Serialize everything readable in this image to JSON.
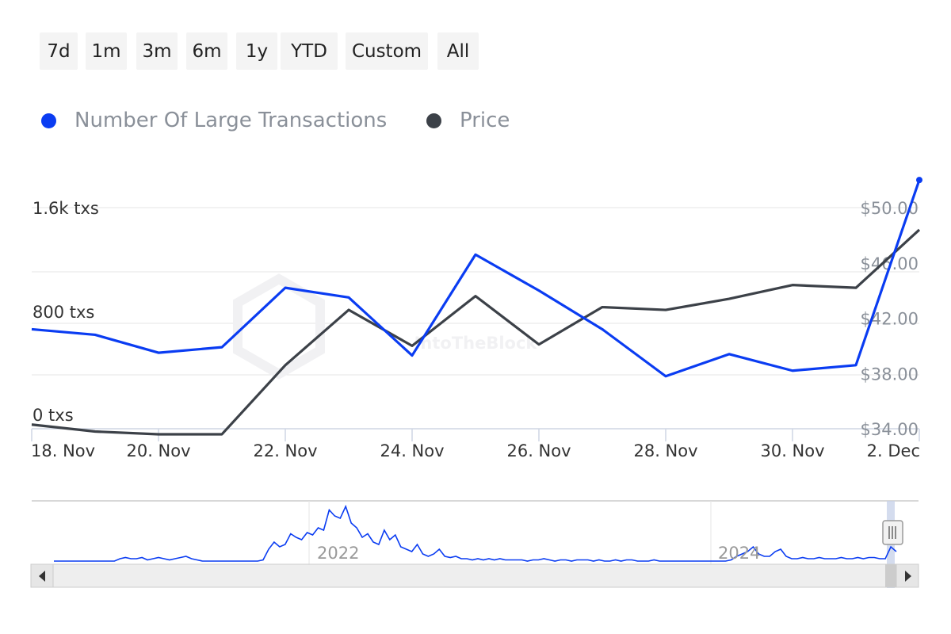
{
  "range_buttons": [
    "7d",
    "1m",
    "3m",
    "6m",
    "1y",
    "YTD",
    "Custom",
    "All"
  ],
  "colors": {
    "transactions": "#0a3cf2",
    "price": "#3c4148",
    "grid": "#e6e6e6",
    "axis_text": "#333333",
    "right_axis_text": "#8a9099",
    "navigator_handle": "#c9d3ea"
  },
  "chart_data": {
    "type": "line",
    "title": "",
    "x": [
      "18 Nov",
      "19 Nov",
      "20 Nov",
      "21 Nov",
      "22 Nov",
      "23 Nov",
      "24 Nov",
      "25 Nov",
      "26 Nov",
      "27 Nov",
      "28 Nov",
      "29 Nov",
      "30 Nov",
      "1 Dec",
      "2 Dec"
    ],
    "series": [
      {
        "name": "Number Of Large Transactions",
        "axis": "left",
        "unit": "txs",
        "values": [
          720,
          680,
          550,
          590,
          1020,
          950,
          530,
          1260,
          1000,
          720,
          380,
          540,
          420,
          460,
          1800
        ]
      },
      {
        "name": "Price",
        "axis": "right",
        "unit": "USD",
        "values": [
          34.3,
          33.8,
          33.6,
          33.6,
          38.6,
          42.6,
          40.0,
          43.6,
          40.1,
          42.8,
          42.6,
          43.4,
          44.4,
          44.2,
          48.4
        ]
      }
    ],
    "x_ticks": [
      "18. Nov",
      "20. Nov",
      "22. Nov",
      "24. Nov",
      "26. Nov",
      "28. Nov",
      "30. Nov",
      "2. Dec"
    ],
    "y_left": {
      "ticks": [
        "0 txs",
        "800 txs",
        "1.6k txs"
      ],
      "ylim": [
        0,
        1600
      ]
    },
    "y_right": {
      "ticks": [
        "$34.00",
        "$38.00",
        "$42.00",
        "$46.00",
        "$50.00"
      ],
      "ylim": [
        34,
        50
      ]
    },
    "legend": "top-left",
    "watermark": "IntoTheBlock",
    "navigator": {
      "year_labels": [
        "2022",
        "2024"
      ],
      "series_values": [
        2,
        2,
        2,
        2,
        2,
        2,
        2,
        2,
        2,
        2,
        2,
        2,
        4,
        5,
        4,
        4,
        5,
        3,
        4,
        5,
        4,
        3,
        4,
        5,
        6,
        4,
        3,
        2,
        2,
        2,
        2,
        2,
        2,
        2,
        2,
        2,
        2,
        2,
        3,
        12,
        18,
        14,
        16,
        25,
        22,
        20,
        26,
        24,
        30,
        28,
        45,
        40,
        38,
        48,
        34,
        30,
        22,
        25,
        18,
        16,
        28,
        20,
        24,
        14,
        12,
        10,
        16,
        8,
        6,
        8,
        12,
        6,
        5,
        6,
        4,
        4,
        3,
        4,
        3,
        4,
        3,
        4,
        3,
        3,
        3,
        3,
        2,
        3,
        3,
        4,
        3,
        2,
        3,
        3,
        2,
        3,
        3,
        3,
        2,
        3,
        2,
        2,
        3,
        2,
        3,
        3,
        2,
        2,
        2,
        3,
        2,
        2,
        2,
        2,
        2,
        2,
        2,
        2,
        2,
        2,
        2,
        2,
        2,
        3,
        6,
        8,
        10,
        14,
        8,
        6,
        6,
        10,
        12,
        6,
        4,
        4,
        5,
        4,
        4,
        5,
        4,
        4,
        4,
        5,
        4,
        4,
        5,
        4,
        5,
        5,
        4,
        4,
        14,
        10
      ]
    }
  }
}
